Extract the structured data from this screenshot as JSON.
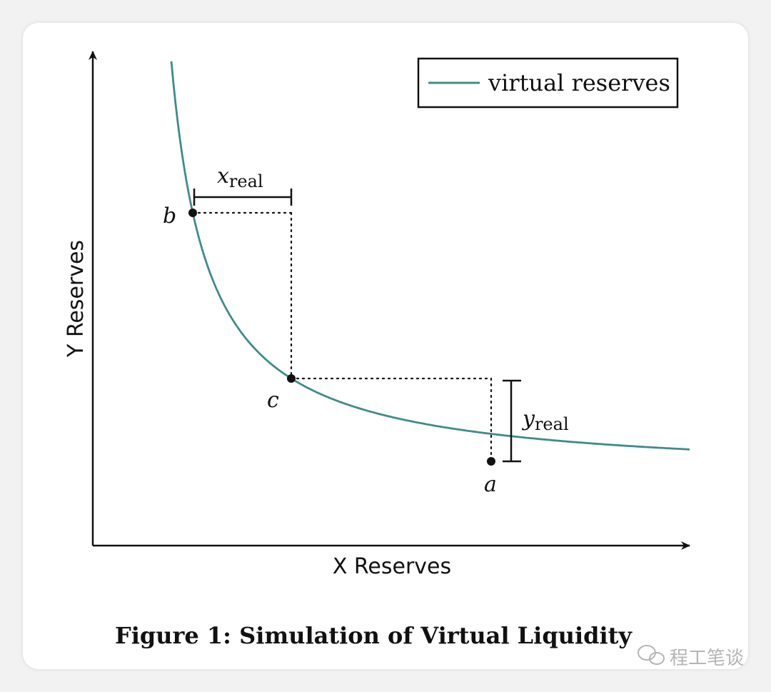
{
  "figure": {
    "caption": "Figure 1: Simulation of Virtual Liquidity",
    "x_axis_label": "X Reserves",
    "y_axis_label": "Y Reserves",
    "legend_label": "virtual reserves",
    "curve_color": "#3f8c8a",
    "points": [
      {
        "label": "b"
      },
      {
        "label": "c"
      },
      {
        "label": "a"
      }
    ],
    "x_real": {
      "main": "x",
      "sub": "real"
    },
    "y_real": {
      "main": "y",
      "sub": "real"
    }
  },
  "watermark": {
    "text": "程工笔谈",
    "icon": "wechat-icon"
  }
}
